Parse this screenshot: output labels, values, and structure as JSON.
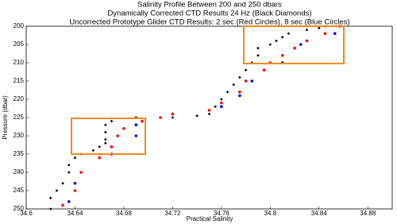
{
  "chart_data": {
    "type": "scatter",
    "title": "Salinity Profile Between 200 and 250 dbars",
    "subtitle": [
      "Dynamically Corrected CTD Results 24 Hz (Black Diamonds)",
      "Uncorrected Prototype Glider CTD Results: 2 sec (Red Circles), 8 sec (Blue Circles)"
    ],
    "x_label": "Practical Salinity",
    "y_label": "Pressure (dbar)",
    "xlim": [
      34.6,
      34.9
    ],
    "ylim": [
      200,
      250
    ],
    "y_inverted": true,
    "xticks": [
      34.6,
      34.64,
      34.68,
      34.72,
      34.76,
      34.8,
      34.84,
      34.88
    ],
    "yticks": [
      200,
      205,
      210,
      215,
      220,
      225,
      230,
      235,
      240,
      245,
      250
    ],
    "grid": false,
    "series": [
      {
        "marker": "diamond",
        "color": "#000000",
        "x": [
          34.62,
          34.62,
          34.625,
          34.63,
          34.635,
          34.635,
          34.64,
          34.645,
          34.655,
          34.66,
          34.665,
          34.665,
          34.665,
          34.665,
          34.67,
          34.69,
          34.72,
          34.74,
          34.75,
          34.755,
          34.76,
          34.765,
          34.77,
          34.775,
          34.78,
          34.785,
          34.79,
          34.79,
          34.8,
          34.805,
          34.81,
          34.815,
          34.83,
          34.84,
          34.845
        ],
        "values": [
          250,
          247,
          245,
          243,
          240,
          238,
          236,
          235,
          234,
          233,
          232,
          231,
          229,
          227,
          226,
          225,
          225,
          224.5,
          224,
          222,
          220,
          218,
          216,
          214,
          212,
          210,
          208,
          206,
          205,
          204,
          203,
          202,
          201,
          200.5,
          200
        ]
      },
      {
        "marker": "circle",
        "color": "#ff0000",
        "x": [
          34.63,
          34.64,
          34.645,
          34.66,
          34.67,
          34.675,
          34.68,
          34.695,
          34.71,
          34.72,
          34.75,
          34.76,
          34.775,
          34.78,
          34.795,
          34.8,
          34.81,
          34.82,
          34.83,
          34.845,
          34.857
        ],
        "values": [
          249,
          245,
          240,
          236,
          233,
          230,
          228,
          226,
          225,
          224,
          223,
          221,
          218,
          215,
          212,
          210,
          208,
          206,
          204,
          202,
          200
        ]
      },
      {
        "marker": "circle",
        "color": "#0000ff",
        "x": [
          34.635,
          34.64,
          34.67,
          34.69,
          34.69,
          34.76,
          34.775,
          34.785,
          34.81,
          34.825,
          34.853
        ],
        "values": [
          248,
          243,
          235,
          230,
          227,
          222,
          219,
          215,
          210,
          205,
          202
        ]
      }
    ]
  }
}
